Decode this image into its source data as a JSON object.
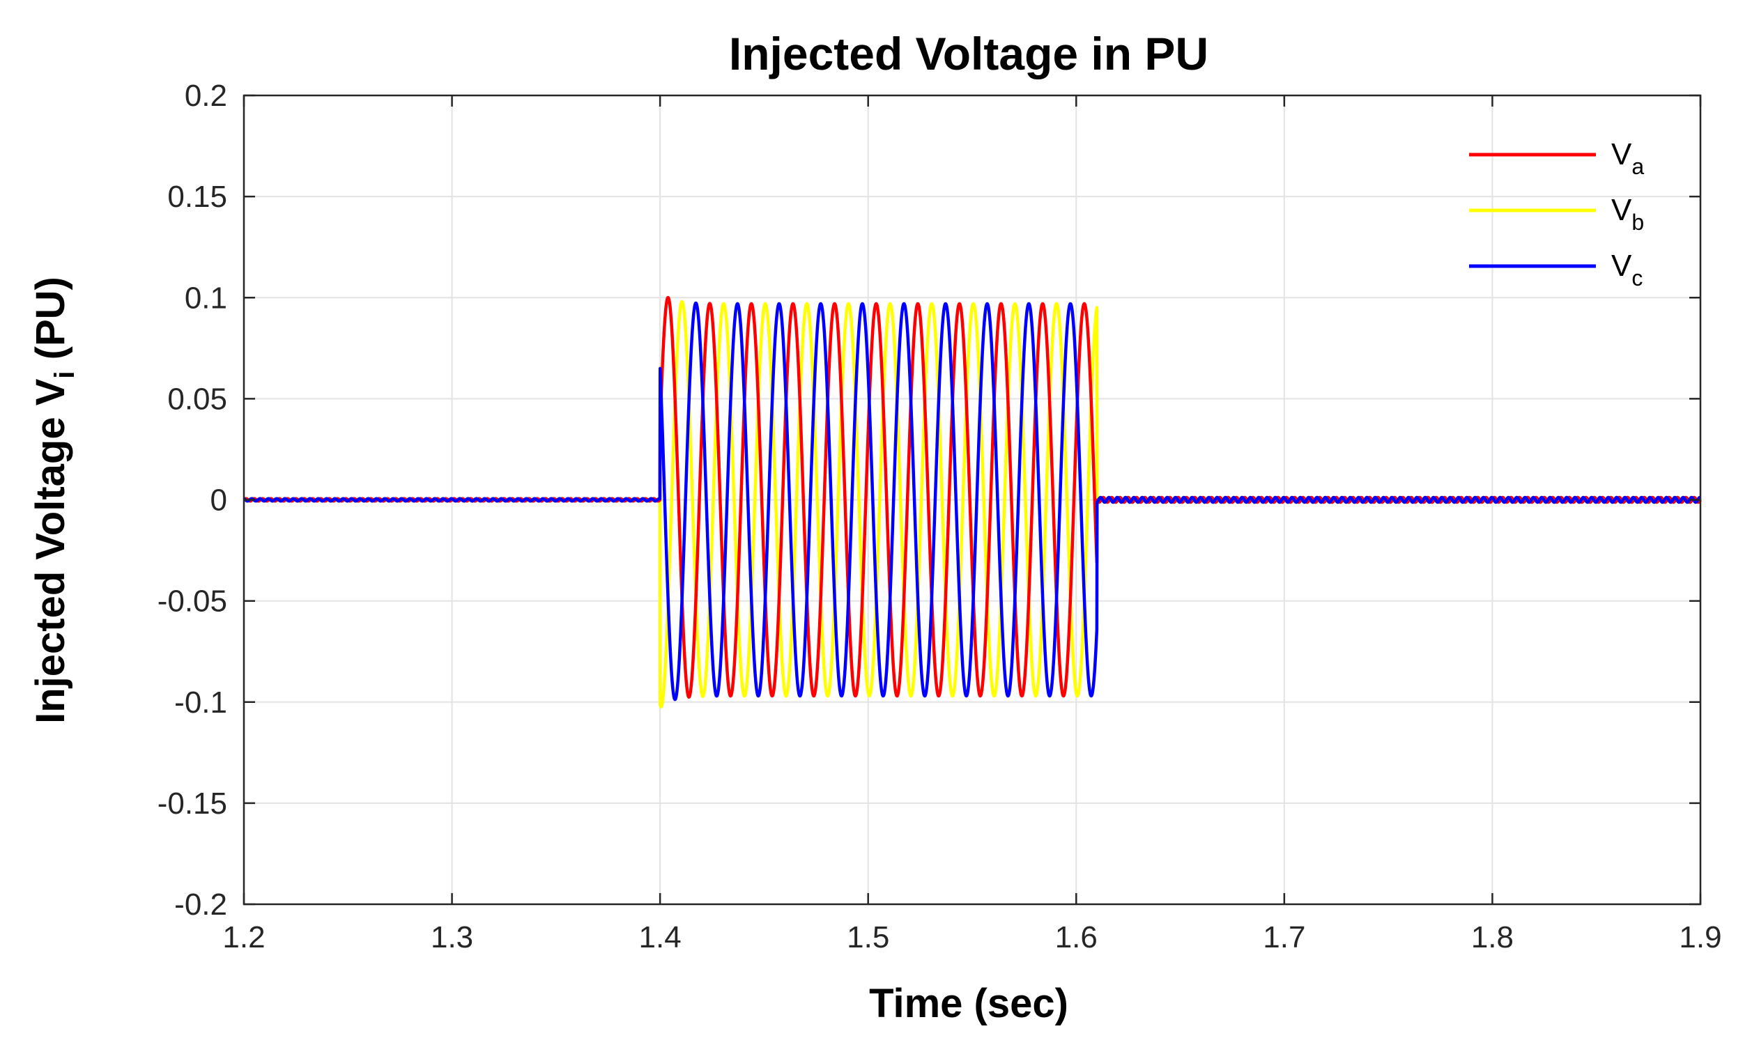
{
  "chart_data": {
    "type": "line",
    "title": "Injected Voltage in PU",
    "xlabel": "Time (sec)",
    "ylabel": {
      "main": "Injected Voltage V",
      "subscript": "i",
      "suffix": " (PU)"
    },
    "xlim": [
      1.2,
      1.9
    ],
    "ylim": [
      -0.2,
      0.2
    ],
    "xticks": [
      1.2,
      1.3,
      1.4,
      1.5,
      1.6,
      1.7,
      1.8,
      1.9
    ],
    "xtick_labels": [
      "1.2",
      "1.3",
      "1.4",
      "1.5",
      "1.6",
      "1.7",
      "1.8",
      "1.9"
    ],
    "yticks": [
      0.2,
      0.15,
      0.1,
      0.05,
      0,
      -0.05,
      -0.1,
      -0.15,
      -0.2
    ],
    "ytick_labels": [
      "0.2",
      "0.15",
      "0.1",
      "0.05",
      "0",
      "-0.05",
      "-0.1",
      "-0.15",
      "-0.2"
    ],
    "grid": true,
    "legend_position": "top-right",
    "sag_start": 1.4,
    "sag_end": 1.61,
    "frequency_hz": 50,
    "amplitude": 0.097,
    "series": [
      {
        "name": "V",
        "subscript": "a",
        "color": "#ff0000",
        "phase_deg": 0
      },
      {
        "name": "V",
        "subscript": "b",
        "color": "#ffff00",
        "phase_deg": -120
      },
      {
        "name": "V",
        "subscript": "c",
        "color": "#0000ff",
        "phase_deg": 120
      }
    ]
  }
}
